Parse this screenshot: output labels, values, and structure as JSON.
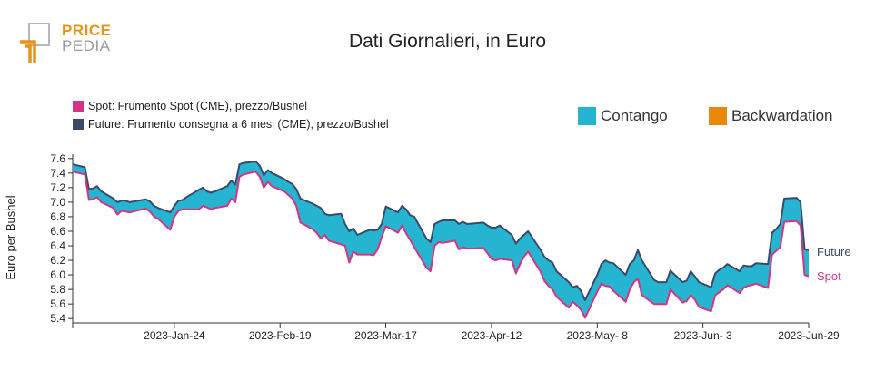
{
  "logo": {
    "top": "PRICE",
    "bottom": "PEDIA"
  },
  "colors": {
    "spot": "#d63384",
    "future": "#3b4a6b",
    "contango": "#25b5d0",
    "backwardation": "#e8890c"
  },
  "legend": {
    "spot": "Spot: Frumento Spot (CME), prezzo/Bushel",
    "future": "Future: Frumento consegna a 6 mesi (CME), prezzo/Bushel",
    "contango": "Contango",
    "backwardation": "Backwardation"
  },
  "chart_data": {
    "type": "area",
    "title": "Dati Giornalieri, in Euro",
    "xlabel": "",
    "ylabel": "Euro per Bushel",
    "ylim": [
      5.34,
      7.66
    ],
    "yticks": [
      5.4,
      5.6,
      5.8,
      6.0,
      6.2,
      6.4,
      6.6,
      6.8,
      7.0,
      7.2,
      7.4,
      7.6
    ],
    "xlim": [
      "2022-12-30",
      "2023-06-29"
    ],
    "xticks": [
      {
        "date": "2023-01-24",
        "label": "2023-Jan-24"
      },
      {
        "date": "2023-02-19",
        "label": "2023-Feb-19"
      },
      {
        "date": "2023-03-17",
        "label": "2023-Mar-17"
      },
      {
        "date": "2023-04-12",
        "label": "2023-Apr-12"
      },
      {
        "date": "2023-05-08",
        "label": "2023-May- 8"
      },
      {
        "date": "2023-06-03",
        "label": "2023-Jun- 3"
      },
      {
        "date": "2023-06-29",
        "label": "2023-Jun-29"
      }
    ],
    "end_labels": {
      "future": "Future",
      "spot": "Spot"
    },
    "series": [
      {
        "name": "Future",
        "points": [
          [
            "2022-12-30",
            7.52
          ],
          [
            "2023-01-02",
            7.48
          ],
          [
            "2023-01-03",
            7.18
          ],
          [
            "2023-01-04",
            7.19
          ],
          [
            "2023-01-05",
            7.22
          ],
          [
            "2023-01-06",
            7.15
          ],
          [
            "2023-01-09",
            7.05
          ],
          [
            "2023-01-10",
            7.0
          ],
          [
            "2023-01-11",
            7.02
          ],
          [
            "2023-01-12",
            7.02
          ],
          [
            "2023-01-13",
            7.0
          ],
          [
            "2023-01-16",
            7.03
          ],
          [
            "2023-01-17",
            7.04
          ],
          [
            "2023-01-18",
            7.01
          ],
          [
            "2023-01-19",
            6.95
          ],
          [
            "2023-01-20",
            6.92
          ],
          [
            "2023-01-23",
            6.86
          ],
          [
            "2023-01-24",
            6.95
          ],
          [
            "2023-01-25",
            7.02
          ],
          [
            "2023-01-26",
            7.03
          ],
          [
            "2023-01-27",
            7.07
          ],
          [
            "2023-01-30",
            7.17
          ],
          [
            "2023-01-31",
            7.2
          ],
          [
            "2023-02-01",
            7.15
          ],
          [
            "2023-02-02",
            7.13
          ],
          [
            "2023-02-03",
            7.15
          ],
          [
            "2023-02-06",
            7.22
          ],
          [
            "2023-02-07",
            7.3
          ],
          [
            "2023-02-08",
            7.24
          ],
          [
            "2023-02-09",
            7.52
          ],
          [
            "2023-02-10",
            7.54
          ],
          [
            "2023-02-13",
            7.56
          ],
          [
            "2023-02-14",
            7.5
          ],
          [
            "2023-02-15",
            7.37
          ],
          [
            "2023-02-16",
            7.44
          ],
          [
            "2023-02-17",
            7.4
          ],
          [
            "2023-02-20",
            7.32
          ],
          [
            "2023-02-21",
            7.28
          ],
          [
            "2023-02-22",
            7.25
          ],
          [
            "2023-02-23",
            7.18
          ],
          [
            "2023-02-24",
            7.05
          ],
          [
            "2023-02-27",
            6.98
          ],
          [
            "2023-02-28",
            6.95
          ],
          [
            "2023-03-01",
            6.92
          ],
          [
            "2023-03-02",
            6.84
          ],
          [
            "2023-03-03",
            6.82
          ],
          [
            "2023-03-06",
            6.84
          ],
          [
            "2023-03-07",
            6.7
          ],
          [
            "2023-03-08",
            6.6
          ],
          [
            "2023-03-09",
            6.64
          ],
          [
            "2023-03-10",
            6.55
          ],
          [
            "2023-03-13",
            6.62
          ],
          [
            "2023-03-14",
            6.61
          ],
          [
            "2023-03-15",
            6.62
          ],
          [
            "2023-03-16",
            6.7
          ],
          [
            "2023-03-17",
            6.94
          ],
          [
            "2023-03-20",
            6.86
          ],
          [
            "2023-03-21",
            6.95
          ],
          [
            "2023-03-22",
            6.9
          ],
          [
            "2023-03-23",
            6.82
          ],
          [
            "2023-03-24",
            6.8
          ],
          [
            "2023-03-27",
            6.5
          ],
          [
            "2023-03-28",
            6.45
          ],
          [
            "2023-03-29",
            6.7
          ],
          [
            "2023-03-30",
            6.73
          ],
          [
            "2023-03-31",
            6.75
          ],
          [
            "2023-04-03",
            6.75
          ],
          [
            "2023-04-04",
            6.7
          ],
          [
            "2023-04-05",
            6.73
          ],
          [
            "2023-04-06",
            6.7
          ],
          [
            "2023-04-10",
            6.72
          ],
          [
            "2023-04-11",
            6.68
          ],
          [
            "2023-04-12",
            6.65
          ],
          [
            "2023-04-13",
            6.65
          ],
          [
            "2023-04-14",
            6.68
          ],
          [
            "2023-04-17",
            6.55
          ],
          [
            "2023-04-18",
            6.43
          ],
          [
            "2023-04-19",
            6.5
          ],
          [
            "2023-04-20",
            6.55
          ],
          [
            "2023-04-21",
            6.6
          ],
          [
            "2023-04-24",
            6.35
          ],
          [
            "2023-04-25",
            6.25
          ],
          [
            "2023-04-26",
            6.2
          ],
          [
            "2023-04-27",
            6.17
          ],
          [
            "2023-04-28",
            6.05
          ],
          [
            "2023-05-01",
            5.9
          ],
          [
            "2023-05-02",
            5.83
          ],
          [
            "2023-05-03",
            5.85
          ],
          [
            "2023-05-04",
            5.78
          ],
          [
            "2023-05-05",
            5.65
          ],
          [
            "2023-05-08",
            6.0
          ],
          [
            "2023-05-09",
            6.15
          ],
          [
            "2023-05-10",
            6.2
          ],
          [
            "2023-05-11",
            6.17
          ],
          [
            "2023-05-12",
            6.16
          ],
          [
            "2023-05-15",
            6.0
          ],
          [
            "2023-05-16",
            6.15
          ],
          [
            "2023-05-17",
            6.2
          ],
          [
            "2023-05-18",
            6.34
          ],
          [
            "2023-05-19",
            6.2
          ],
          [
            "2023-05-22",
            5.93
          ],
          [
            "2023-05-23",
            5.9
          ],
          [
            "2023-05-24",
            5.9
          ],
          [
            "2023-05-25",
            5.9
          ],
          [
            "2023-05-26",
            6.06
          ],
          [
            "2023-05-29",
            5.9
          ],
          [
            "2023-05-30",
            5.92
          ],
          [
            "2023-05-31",
            6.05
          ],
          [
            "2023-06-01",
            5.98
          ],
          [
            "2023-06-02",
            5.9
          ],
          [
            "2023-06-05",
            5.83
          ],
          [
            "2023-06-06",
            6.02
          ],
          [
            "2023-06-07",
            6.07
          ],
          [
            "2023-06-08",
            6.1
          ],
          [
            "2023-06-09",
            6.15
          ],
          [
            "2023-06-12",
            6.05
          ],
          [
            "2023-06-13",
            6.13
          ],
          [
            "2023-06-14",
            6.12
          ],
          [
            "2023-06-15",
            6.12
          ],
          [
            "2023-06-16",
            6.16
          ],
          [
            "2023-06-19",
            6.15
          ],
          [
            "2023-06-20",
            6.58
          ],
          [
            "2023-06-21",
            6.63
          ],
          [
            "2023-06-22",
            6.7
          ],
          [
            "2023-06-23",
            7.05
          ],
          [
            "2023-06-26",
            7.06
          ],
          [
            "2023-06-27",
            7.0
          ],
          [
            "2023-06-28",
            6.35
          ],
          [
            "2023-06-29",
            6.34
          ]
        ]
      },
      {
        "name": "Spot",
        "points": [
          [
            "2022-12-30",
            7.42
          ],
          [
            "2023-01-02",
            7.38
          ],
          [
            "2023-01-03",
            7.03
          ],
          [
            "2023-01-04",
            7.04
          ],
          [
            "2023-01-05",
            7.07
          ],
          [
            "2023-01-06",
            7.0
          ],
          [
            "2023-01-09",
            6.92
          ],
          [
            "2023-01-10",
            6.83
          ],
          [
            "2023-01-11",
            6.88
          ],
          [
            "2023-01-12",
            6.87
          ],
          [
            "2023-01-13",
            6.86
          ],
          [
            "2023-01-16",
            6.9
          ],
          [
            "2023-01-17",
            6.91
          ],
          [
            "2023-01-18",
            6.87
          ],
          [
            "2023-01-19",
            6.8
          ],
          [
            "2023-01-20",
            6.77
          ],
          [
            "2023-01-23",
            6.62
          ],
          [
            "2023-01-24",
            6.8
          ],
          [
            "2023-01-25",
            6.88
          ],
          [
            "2023-01-26",
            6.9
          ],
          [
            "2023-01-27",
            6.9
          ],
          [
            "2023-01-30",
            6.9
          ],
          [
            "2023-01-31",
            6.95
          ],
          [
            "2023-02-01",
            6.93
          ],
          [
            "2023-02-02",
            6.9
          ],
          [
            "2023-02-03",
            6.92
          ],
          [
            "2023-02-06",
            6.95
          ],
          [
            "2023-02-07",
            7.05
          ],
          [
            "2023-02-08",
            7.0
          ],
          [
            "2023-02-09",
            7.35
          ],
          [
            "2023-02-10",
            7.38
          ],
          [
            "2023-02-13",
            7.42
          ],
          [
            "2023-02-14",
            7.35
          ],
          [
            "2023-02-15",
            7.2
          ],
          [
            "2023-02-16",
            7.28
          ],
          [
            "2023-02-17",
            7.22
          ],
          [
            "2023-02-20",
            7.15
          ],
          [
            "2023-02-21",
            7.1
          ],
          [
            "2023-02-22",
            7.05
          ],
          [
            "2023-02-23",
            6.95
          ],
          [
            "2023-02-24",
            6.72
          ],
          [
            "2023-02-27",
            6.63
          ],
          [
            "2023-02-28",
            6.58
          ],
          [
            "2023-03-01",
            6.5
          ],
          [
            "2023-03-02",
            6.55
          ],
          [
            "2023-03-03",
            6.47
          ],
          [
            "2023-03-06",
            6.42
          ],
          [
            "2023-03-07",
            6.4
          ],
          [
            "2023-03-08",
            6.17
          ],
          [
            "2023-03-09",
            6.32
          ],
          [
            "2023-03-10",
            6.28
          ],
          [
            "2023-03-13",
            6.28
          ],
          [
            "2023-03-14",
            6.27
          ],
          [
            "2023-03-15",
            6.35
          ],
          [
            "2023-03-16",
            6.52
          ],
          [
            "2023-03-17",
            6.67
          ],
          [
            "2023-03-20",
            6.58
          ],
          [
            "2023-03-21",
            6.68
          ],
          [
            "2023-03-22",
            6.57
          ],
          [
            "2023-03-23",
            6.48
          ],
          [
            "2023-03-24",
            6.38
          ],
          [
            "2023-03-27",
            6.1
          ],
          [
            "2023-03-28",
            6.05
          ],
          [
            "2023-03-29",
            6.4
          ],
          [
            "2023-03-30",
            6.45
          ],
          [
            "2023-03-31",
            6.44
          ],
          [
            "2023-04-03",
            6.47
          ],
          [
            "2023-04-04",
            6.35
          ],
          [
            "2023-04-05",
            6.38
          ],
          [
            "2023-04-06",
            6.36
          ],
          [
            "2023-04-10",
            6.37
          ],
          [
            "2023-04-11",
            6.3
          ],
          [
            "2023-04-12",
            6.22
          ],
          [
            "2023-04-13",
            6.2
          ],
          [
            "2023-04-14",
            6.22
          ],
          [
            "2023-04-17",
            6.2
          ],
          [
            "2023-04-18",
            6.02
          ],
          [
            "2023-04-19",
            6.15
          ],
          [
            "2023-04-20",
            6.25
          ],
          [
            "2023-04-21",
            6.32
          ],
          [
            "2023-04-24",
            6.05
          ],
          [
            "2023-04-25",
            5.92
          ],
          [
            "2023-04-26",
            5.85
          ],
          [
            "2023-04-27",
            5.8
          ],
          [
            "2023-04-28",
            5.7
          ],
          [
            "2023-05-01",
            5.55
          ],
          [
            "2023-05-02",
            5.63
          ],
          [
            "2023-05-03",
            5.58
          ],
          [
            "2023-05-04",
            5.52
          ],
          [
            "2023-05-05",
            5.41
          ],
          [
            "2023-05-08",
            5.77
          ],
          [
            "2023-05-09",
            5.88
          ],
          [
            "2023-05-10",
            5.85
          ],
          [
            "2023-05-11",
            5.84
          ],
          [
            "2023-05-12",
            5.78
          ],
          [
            "2023-05-15",
            5.63
          ],
          [
            "2023-05-16",
            5.8
          ],
          [
            "2023-05-17",
            5.9
          ],
          [
            "2023-05-18",
            5.95
          ],
          [
            "2023-05-19",
            5.72
          ],
          [
            "2023-05-22",
            5.6
          ],
          [
            "2023-05-23",
            5.6
          ],
          [
            "2023-05-24",
            5.6
          ],
          [
            "2023-05-25",
            5.6
          ],
          [
            "2023-05-26",
            5.8
          ],
          [
            "2023-05-29",
            5.62
          ],
          [
            "2023-05-30",
            5.64
          ],
          [
            "2023-05-31",
            5.72
          ],
          [
            "2023-06-01",
            5.66
          ],
          [
            "2023-06-02",
            5.56
          ],
          [
            "2023-06-05",
            5.5
          ],
          [
            "2023-06-06",
            5.72
          ],
          [
            "2023-06-07",
            5.76
          ],
          [
            "2023-06-08",
            5.8
          ],
          [
            "2023-06-09",
            5.86
          ],
          [
            "2023-06-12",
            5.75
          ],
          [
            "2023-06-13",
            5.82
          ],
          [
            "2023-06-14",
            5.85
          ],
          [
            "2023-06-15",
            5.86
          ],
          [
            "2023-06-16",
            5.88
          ],
          [
            "2023-06-19",
            5.82
          ],
          [
            "2023-06-20",
            6.28
          ],
          [
            "2023-06-21",
            6.33
          ],
          [
            "2023-06-22",
            6.38
          ],
          [
            "2023-06-23",
            6.73
          ],
          [
            "2023-06-26",
            6.74
          ],
          [
            "2023-06-27",
            6.68
          ],
          [
            "2023-06-28",
            6.0
          ],
          [
            "2023-06-29",
            5.98
          ]
        ]
      }
    ]
  }
}
